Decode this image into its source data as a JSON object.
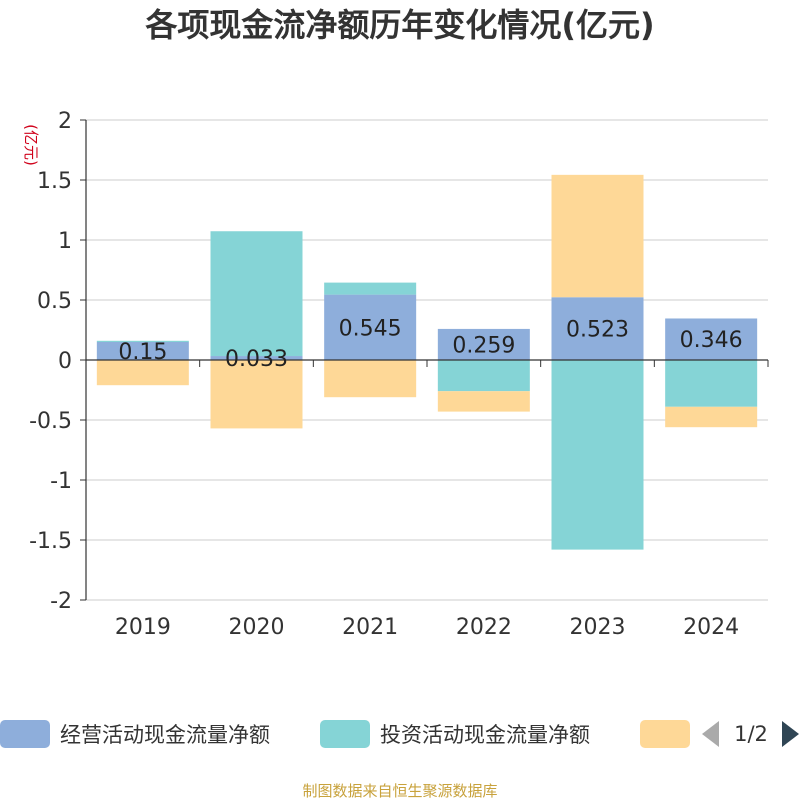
{
  "chart_data": {
    "type": "bar",
    "title": "各项现金流净额历年变化情况(亿元)",
    "unit_label": "(亿元)",
    "categories": [
      "2019",
      "2020",
      "2021",
      "2022",
      "2023",
      "2024"
    ],
    "ylim": [
      -2,
      2
    ],
    "yticks": [
      2,
      1.5,
      1,
      0.5,
      0,
      -0.5,
      -1,
      -1.5,
      -2
    ],
    "grid": true,
    "stacked": true,
    "series": [
      {
        "name": "经营活动现金流量净额",
        "color": "#8eaedb",
        "values": [
          0.15,
          0.033,
          0.545,
          0.259,
          0.523,
          0.346
        ],
        "labels": [
          "0.15",
          "0.033",
          "0.545",
          "0.259",
          "0.523",
          "0.346"
        ]
      },
      {
        "name": "投资活动现金流量净额",
        "color": "#85d4d6",
        "values": [
          0.01,
          1.04,
          0.1,
          -0.26,
          -1.58,
          -0.39
        ]
      },
      {
        "name": "",
        "color": "#fed897",
        "values": [
          -0.21,
          -0.57,
          -0.31,
          -0.17,
          1.02,
          -0.17
        ]
      }
    ],
    "legend_position": "bottom",
    "pager": "1/2"
  },
  "footer": "制图数据来自恒生聚源数据库"
}
